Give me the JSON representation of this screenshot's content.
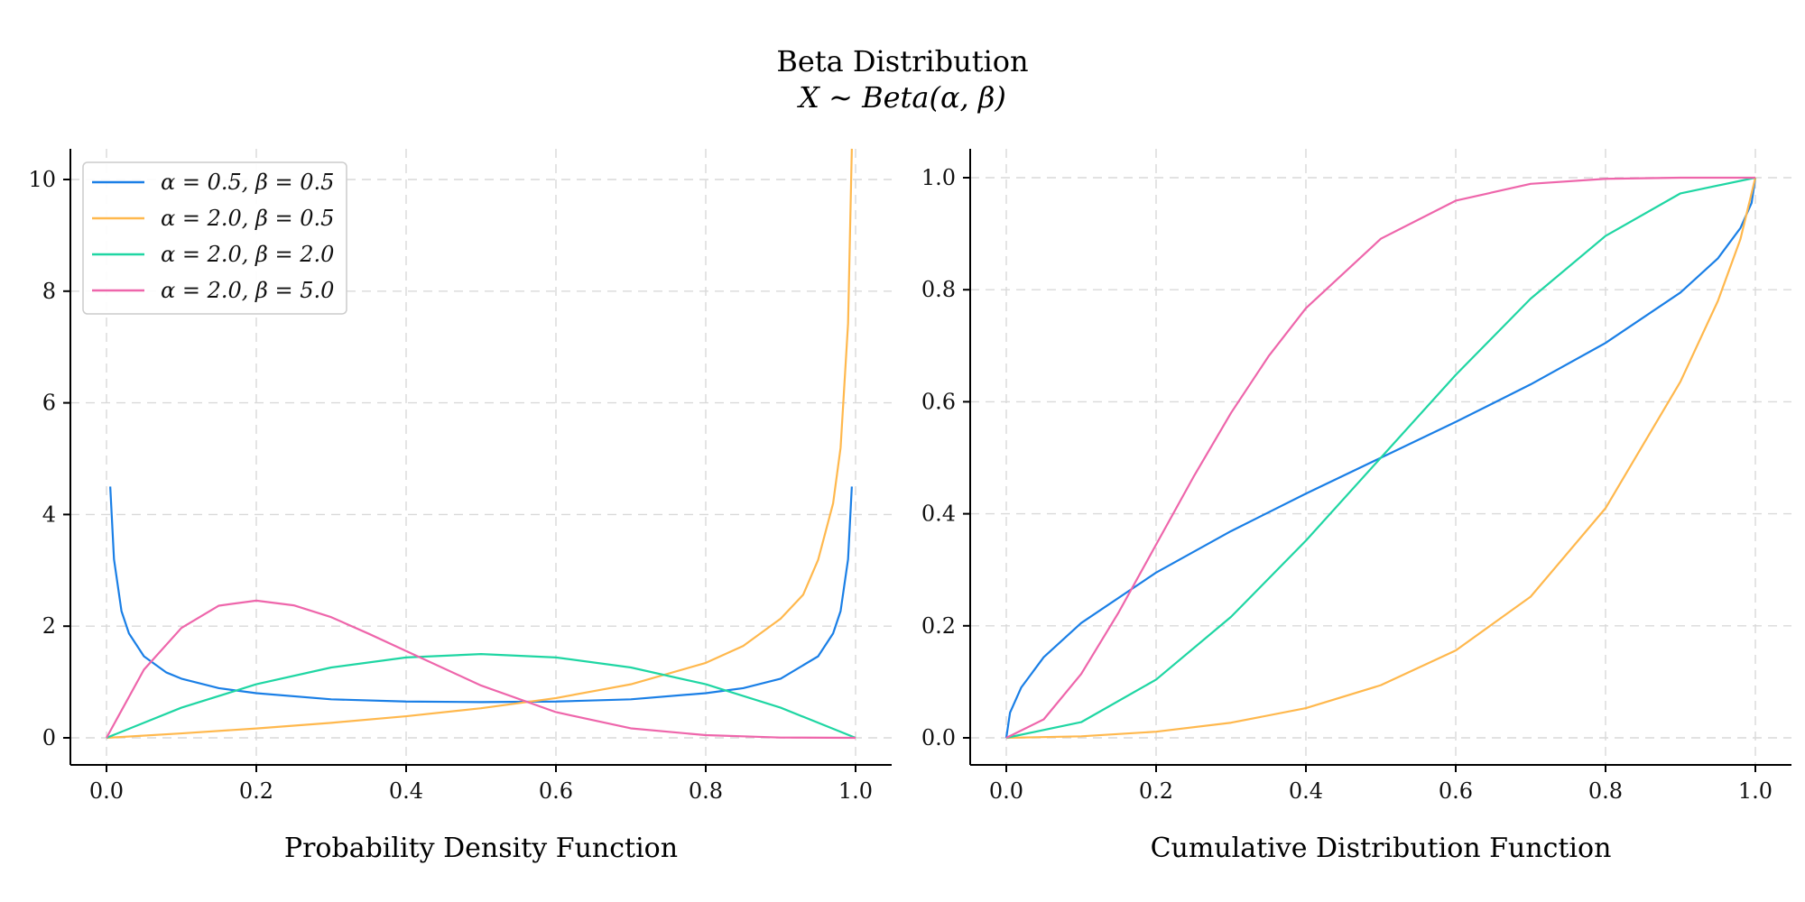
{
  "title": "Beta Distribution",
  "subtitle": "X ∼ Beta(α, β)",
  "colors": {
    "blue": "#1a7fe6",
    "orange": "#ffb84d",
    "green": "#1fd6a3",
    "pink": "#ee66ab"
  },
  "chart_data": [
    {
      "type": "line",
      "xlabel": "Probability Density Function",
      "xlim": [
        0,
        1
      ],
      "ylim": [
        0,
        10.6
      ],
      "xticks": [
        "0.0",
        "0.2",
        "0.4",
        "0.6",
        "0.8",
        "1.0"
      ],
      "yticks": [
        "0",
        "2",
        "4",
        "6",
        "8",
        "10"
      ],
      "grid": true,
      "legend": "top-left",
      "series": [
        {
          "name": "α = 0.5, β = 0.5",
          "color": "#1a7fe6",
          "x": [
            0.005,
            0.01,
            0.02,
            0.03,
            0.05,
            0.08,
            0.1,
            0.15,
            0.2,
            0.3,
            0.4,
            0.5,
            0.6,
            0.7,
            0.8,
            0.85,
            0.9,
            0.95,
            0.97,
            0.98,
            0.99,
            0.995
          ],
          "y": [
            4.5,
            3.2,
            2.27,
            1.87,
            1.46,
            1.17,
            1.06,
            0.89,
            0.8,
            0.69,
            0.65,
            0.64,
            0.65,
            0.69,
            0.8,
            0.89,
            1.06,
            1.46,
            1.87,
            2.27,
            3.2,
            4.5
          ]
        },
        {
          "name": "α = 2.0, β = 0.5",
          "color": "#ffb84d",
          "x": [
            0,
            0.1,
            0.2,
            0.3,
            0.4,
            0.5,
            0.6,
            0.7,
            0.8,
            0.85,
            0.9,
            0.93,
            0.95,
            0.97,
            0.98,
            0.99,
            0.995
          ],
          "y": [
            0,
            0.08,
            0.168,
            0.269,
            0.387,
            0.53,
            0.712,
            0.959,
            1.342,
            1.646,
            2.134,
            2.562,
            3.187,
            4.199,
            5.196,
            7.425,
            10.55
          ]
        },
        {
          "name": "α = 2.0, β = 2.0",
          "color": "#1fd6a3",
          "x": [
            0,
            0.1,
            0.2,
            0.3,
            0.4,
            0.5,
            0.6,
            0.7,
            0.8,
            0.9,
            1.0
          ],
          "y": [
            0,
            0.54,
            0.96,
            1.26,
            1.44,
            1.5,
            1.44,
            1.26,
            0.96,
            0.54,
            0
          ]
        },
        {
          "name": "α = 2.0, β = 5.0",
          "color": "#ee66ab",
          "x": [
            0,
            0.05,
            0.1,
            0.15,
            0.2,
            0.25,
            0.3,
            0.35,
            0.4,
            0.5,
            0.6,
            0.7,
            0.8,
            0.9,
            1.0
          ],
          "y": [
            0,
            1.222,
            1.968,
            2.367,
            2.458,
            2.373,
            2.161,
            1.865,
            1.555,
            0.9375,
            0.4608,
            0.1701,
            0.048,
            0.0054,
            0
          ]
        }
      ]
    },
    {
      "type": "line",
      "xlabel": "Cumulative Distribution Function",
      "xlim": [
        0,
        1
      ],
      "ylim": [
        0,
        1
      ],
      "xticks": [
        "0.0",
        "0.2",
        "0.4",
        "0.6",
        "0.8",
        "1.0"
      ],
      "yticks": [
        "0.0",
        "0.2",
        "0.4",
        "0.6",
        "0.8",
        "1.0"
      ],
      "grid": true,
      "series": [
        {
          "name": "α = 0.5, β = 0.5",
          "color": "#1a7fe6",
          "x": [
            0,
            0.005,
            0.02,
            0.05,
            0.1,
            0.2,
            0.3,
            0.4,
            0.5,
            0.6,
            0.7,
            0.8,
            0.9,
            0.95,
            0.98,
            0.995,
            1.0
          ],
          "y": [
            0,
            0.045,
            0.09,
            0.144,
            0.205,
            0.295,
            0.369,
            0.436,
            0.5,
            0.564,
            0.631,
            0.705,
            0.795,
            0.856,
            0.91,
            0.955,
            1.0
          ]
        },
        {
          "name": "α = 2.0, β = 0.5",
          "color": "#ffb84d",
          "x": [
            0,
            0.1,
            0.2,
            0.3,
            0.4,
            0.5,
            0.6,
            0.7,
            0.8,
            0.9,
            0.95,
            0.98,
            1.0
          ],
          "y": [
            0,
            0.0027,
            0.011,
            0.027,
            0.053,
            0.094,
            0.156,
            0.252,
            0.41,
            0.636,
            0.78,
            0.89,
            1.0
          ]
        },
        {
          "name": "α = 2.0, β = 2.0",
          "color": "#1fd6a3",
          "x": [
            0,
            0.1,
            0.2,
            0.3,
            0.4,
            0.5,
            0.6,
            0.7,
            0.8,
            0.9,
            1.0
          ],
          "y": [
            0,
            0.028,
            0.104,
            0.216,
            0.352,
            0.5,
            0.648,
            0.784,
            0.896,
            0.972,
            1.0
          ]
        },
        {
          "name": "α = 2.0, β = 5.0",
          "color": "#ee66ab",
          "x": [
            0,
            0.05,
            0.1,
            0.15,
            0.2,
            0.25,
            0.3,
            0.35,
            0.4,
            0.5,
            0.6,
            0.7,
            0.8,
            0.9,
            1.0
          ],
          "y": [
            0,
            0.033,
            0.114,
            0.224,
            0.345,
            0.466,
            0.58,
            0.681,
            0.767,
            0.891,
            0.959,
            0.989,
            0.998,
            1.0,
            1.0
          ]
        }
      ]
    }
  ]
}
